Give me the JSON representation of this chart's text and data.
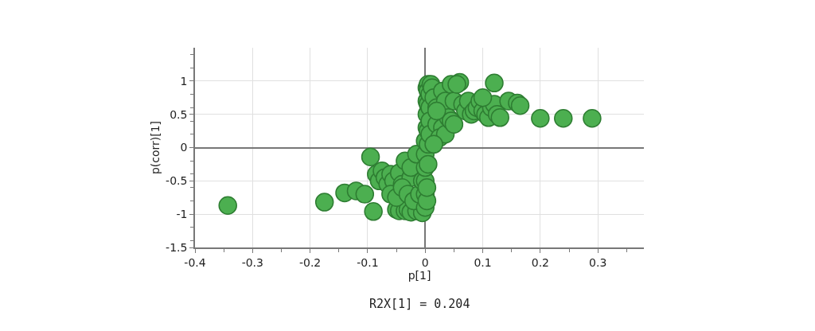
{
  "chart_data": {
    "type": "scatter",
    "xlabel": "p[1]",
    "ylabel": "p(corr)[1]",
    "annotations": [
      "R2X[1] = 0.204"
    ],
    "xlim": [
      -0.4,
      0.38
    ],
    "ylim": [
      -1.5,
      1.5
    ],
    "xticks": [
      -0.4,
      -0.3,
      -0.2,
      -0.1,
      0,
      0.1,
      0.2,
      0.3
    ],
    "yticks": [
      -1.5,
      -1,
      -0.5,
      0,
      0.5,
      1
    ],
    "grid": true,
    "marker": "circle",
    "series": [
      {
        "color": "#4caf50",
        "x": [
          -0.343,
          -0.175,
          -0.14,
          -0.12,
          -0.105,
          -0.09,
          -0.095,
          -0.085,
          -0.08,
          -0.075,
          -0.07,
          -0.065,
          -0.06,
          -0.055,
          -0.045,
          -0.04,
          -0.025,
          -0.05,
          -0.045,
          -0.035,
          -0.03,
          -0.025,
          -0.015,
          -0.005,
          -0.06,
          -0.05,
          -0.04,
          -0.03,
          -0.02,
          -0.01,
          -0.035,
          -0.025,
          -0.015,
          -0.005,
          0,
          0,
          0,
          0,
          0,
          0,
          0.003,
          0.003,
          0.003,
          0.003,
          0.003,
          0.003,
          0.005,
          0.005,
          0.005,
          0.005,
          0.005,
          0.005,
          0.008,
          0.008,
          0.008,
          0.008,
          0.01,
          0.012,
          0.015,
          0.02,
          0.03,
          0.035,
          0.045,
          0.05,
          0.065,
          0.07,
          0.075,
          0.08,
          0.085,
          0.09,
          0.095,
          0.1,
          0.105,
          0.11,
          0.115,
          0.12,
          0.125,
          0.13,
          0.1,
          0.06,
          0.055,
          0.12,
          0.145,
          0.16,
          0.165,
          0.2,
          0.24,
          0.29,
          0.02,
          0.03,
          0.04,
          0.025,
          0.035,
          0.045,
          0.05,
          0.015,
          0.02
        ],
        "values": [
          -0.87,
          -0.82,
          -0.68,
          -0.65,
          -0.7,
          -0.96,
          -0.14,
          -0.4,
          -0.5,
          -0.35,
          -0.45,
          -0.55,
          -0.4,
          -0.5,
          -0.38,
          -0.55,
          -0.45,
          -0.93,
          -0.95,
          -0.95,
          -0.93,
          -0.97,
          -0.95,
          -0.98,
          -0.7,
          -0.75,
          -0.6,
          -0.7,
          -0.8,
          -0.7,
          -0.2,
          -0.3,
          -0.1,
          -0.5,
          -0.9,
          -0.7,
          -0.5,
          -0.3,
          -0.1,
          0.1,
          0.3,
          0.5,
          0.7,
          0.9,
          -0.8,
          -0.6,
          0.95,
          0.85,
          0.65,
          0.25,
          0.05,
          -0.25,
          0.8,
          0.6,
          0.4,
          0.2,
          0.95,
          0.9,
          0.75,
          0.6,
          0.85,
          0.7,
          0.95,
          0.7,
          0.65,
          0.55,
          0.7,
          0.5,
          0.55,
          0.6,
          0.7,
          0.55,
          0.5,
          0.45,
          0.6,
          0.65,
          0.5,
          0.45,
          0.75,
          0.98,
          0.95,
          0.97,
          0.7,
          0.67,
          0.63,
          0.44,
          0.44,
          0.44,
          0.35,
          0.3,
          0.45,
          0.15,
          0.2,
          0.4,
          0.35,
          0.05,
          0.55
        ]
      }
    ]
  }
}
